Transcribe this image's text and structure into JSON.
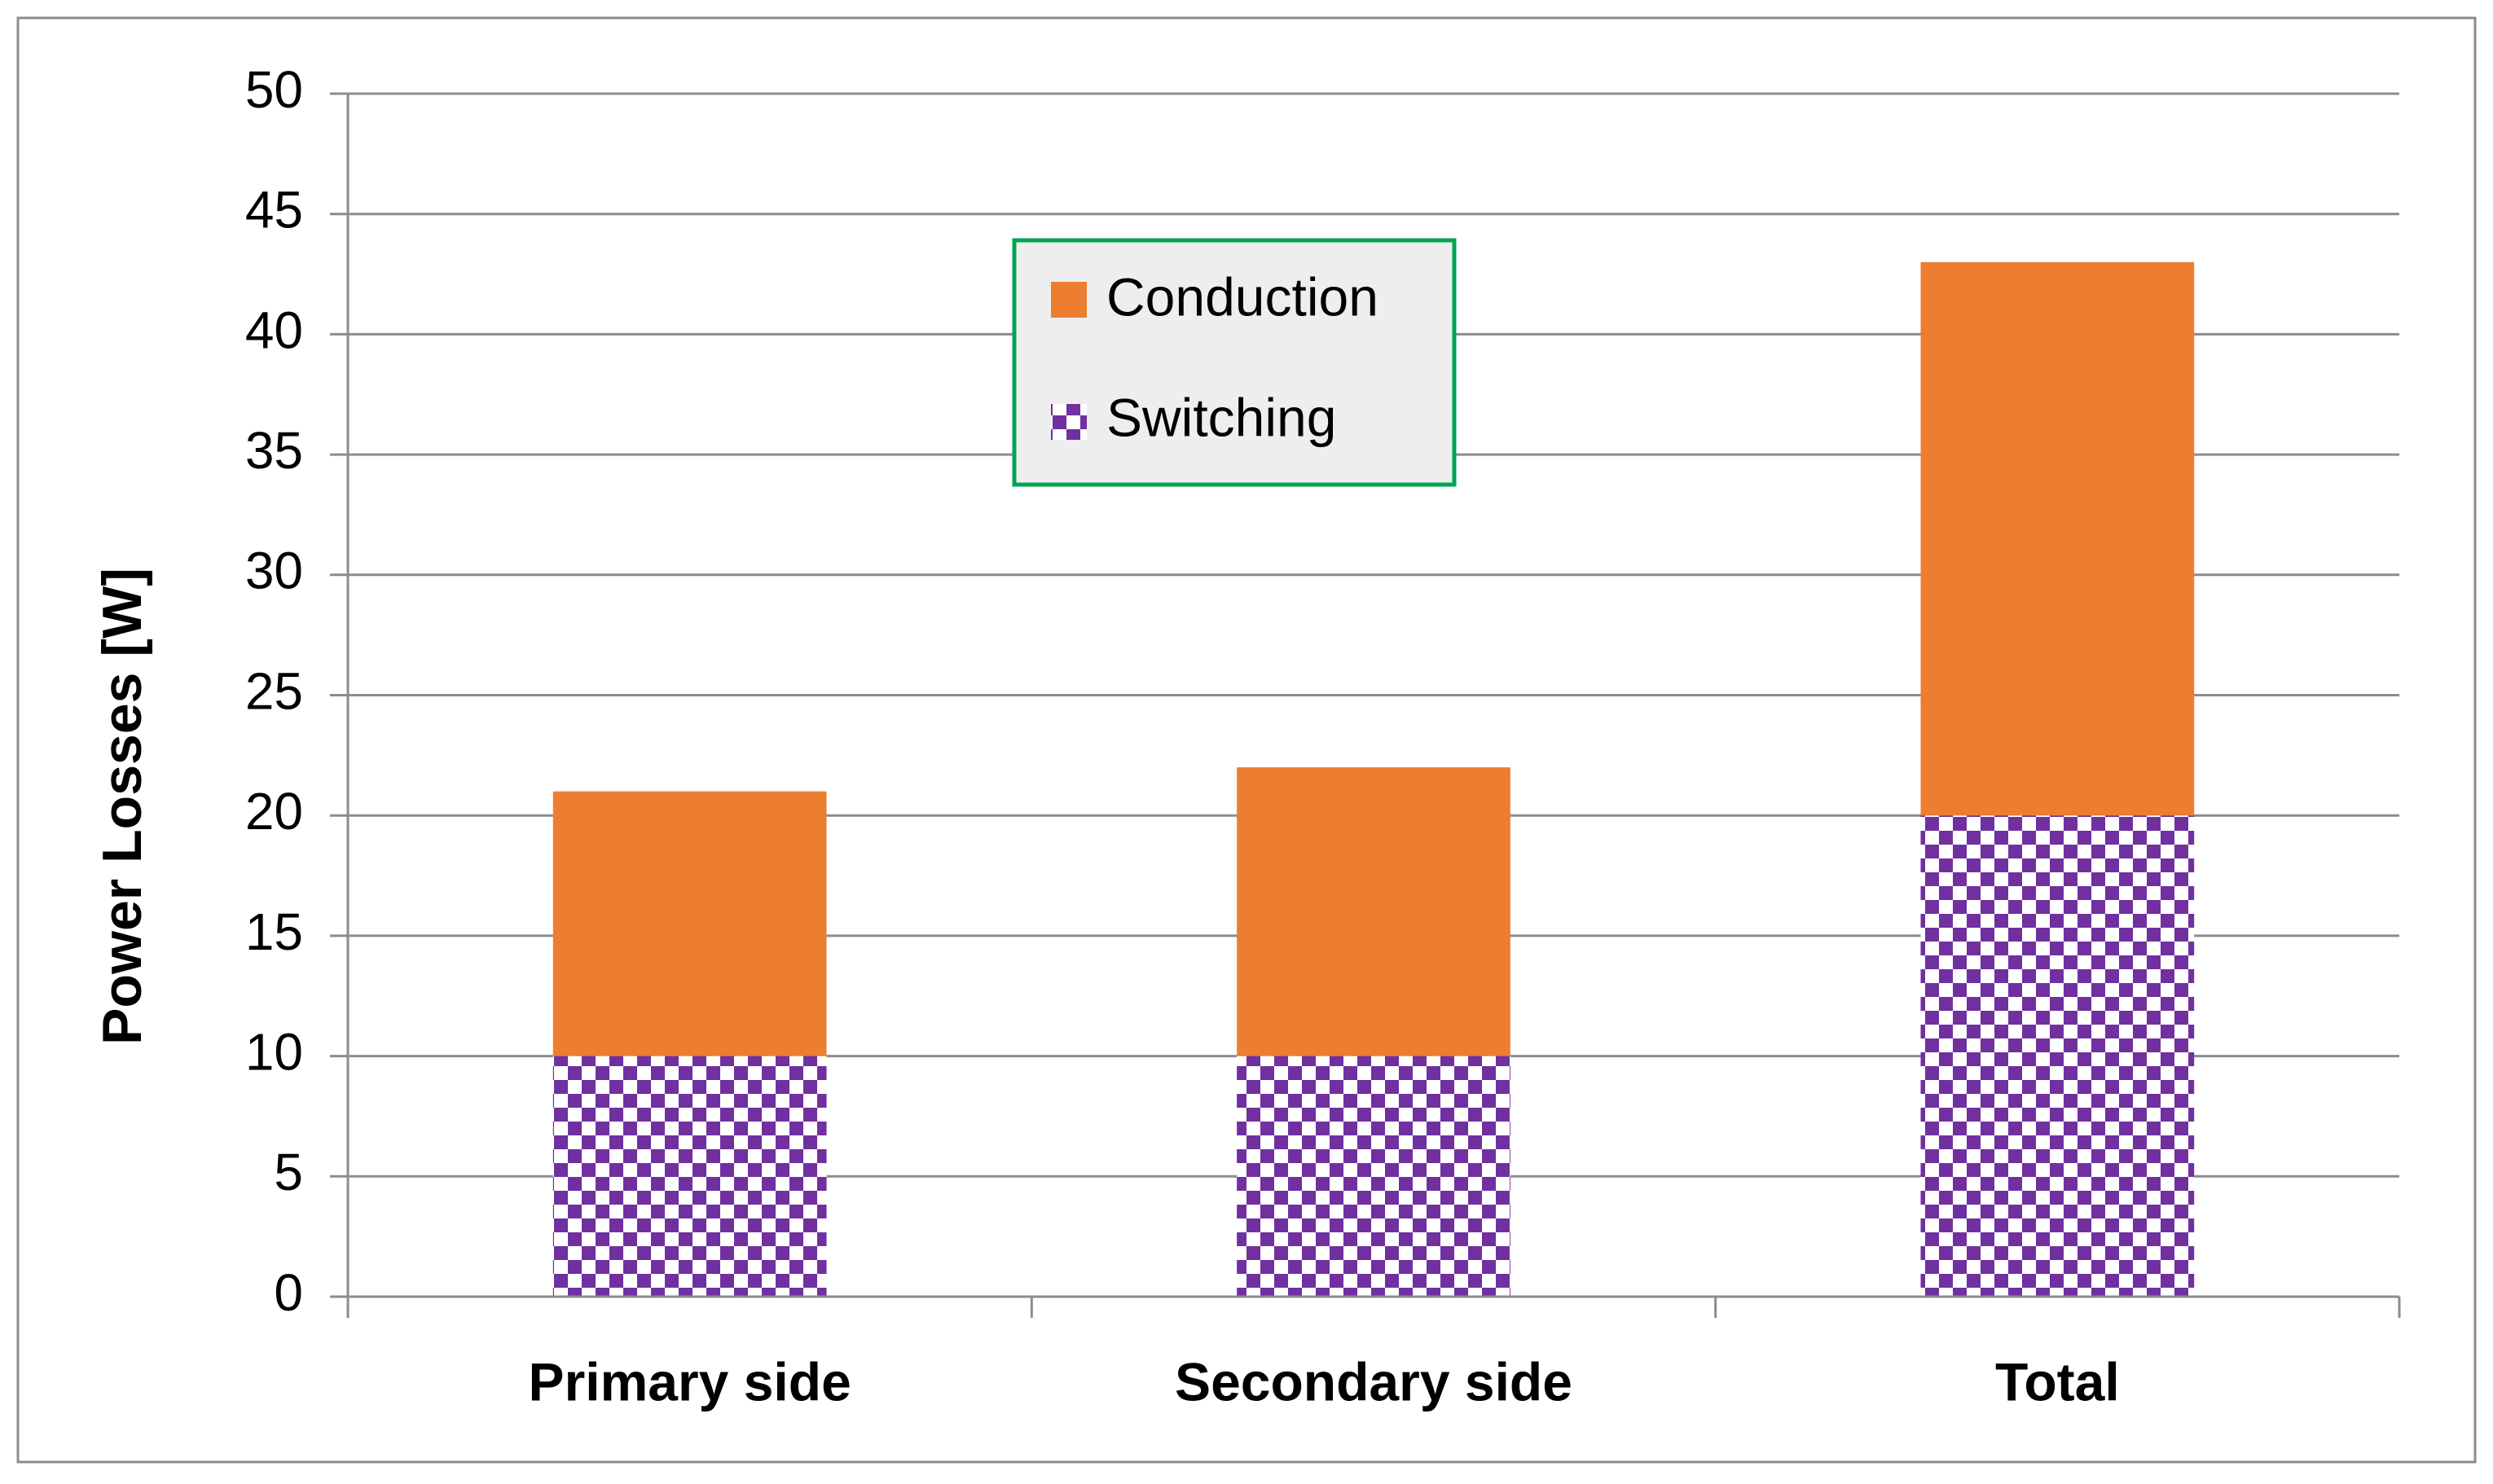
{
  "chart_data": {
    "type": "bar",
    "stacked": true,
    "title": "",
    "xlabel": "",
    "ylabel": "Power Losses [W]",
    "ylim": [
      0,
      50
    ],
    "yticks": [
      0,
      5,
      10,
      15,
      20,
      25,
      30,
      35,
      40,
      45,
      50
    ],
    "grid": true,
    "categories": [
      "Primary side",
      "Secondary side",
      "Total"
    ],
    "series": [
      {
        "name": "Switching",
        "values": [
          10,
          10,
          20
        ],
        "color": "#7030A0",
        "pattern": "checkerboard"
      },
      {
        "name": "Conduction",
        "values": [
          11,
          12,
          23
        ],
        "color": "#ED7D31",
        "pattern": "solid"
      }
    ],
    "legend": {
      "placement": "top-center",
      "entries": [
        "Conduction",
        "Switching"
      ],
      "border_color": "#00A550"
    }
  }
}
